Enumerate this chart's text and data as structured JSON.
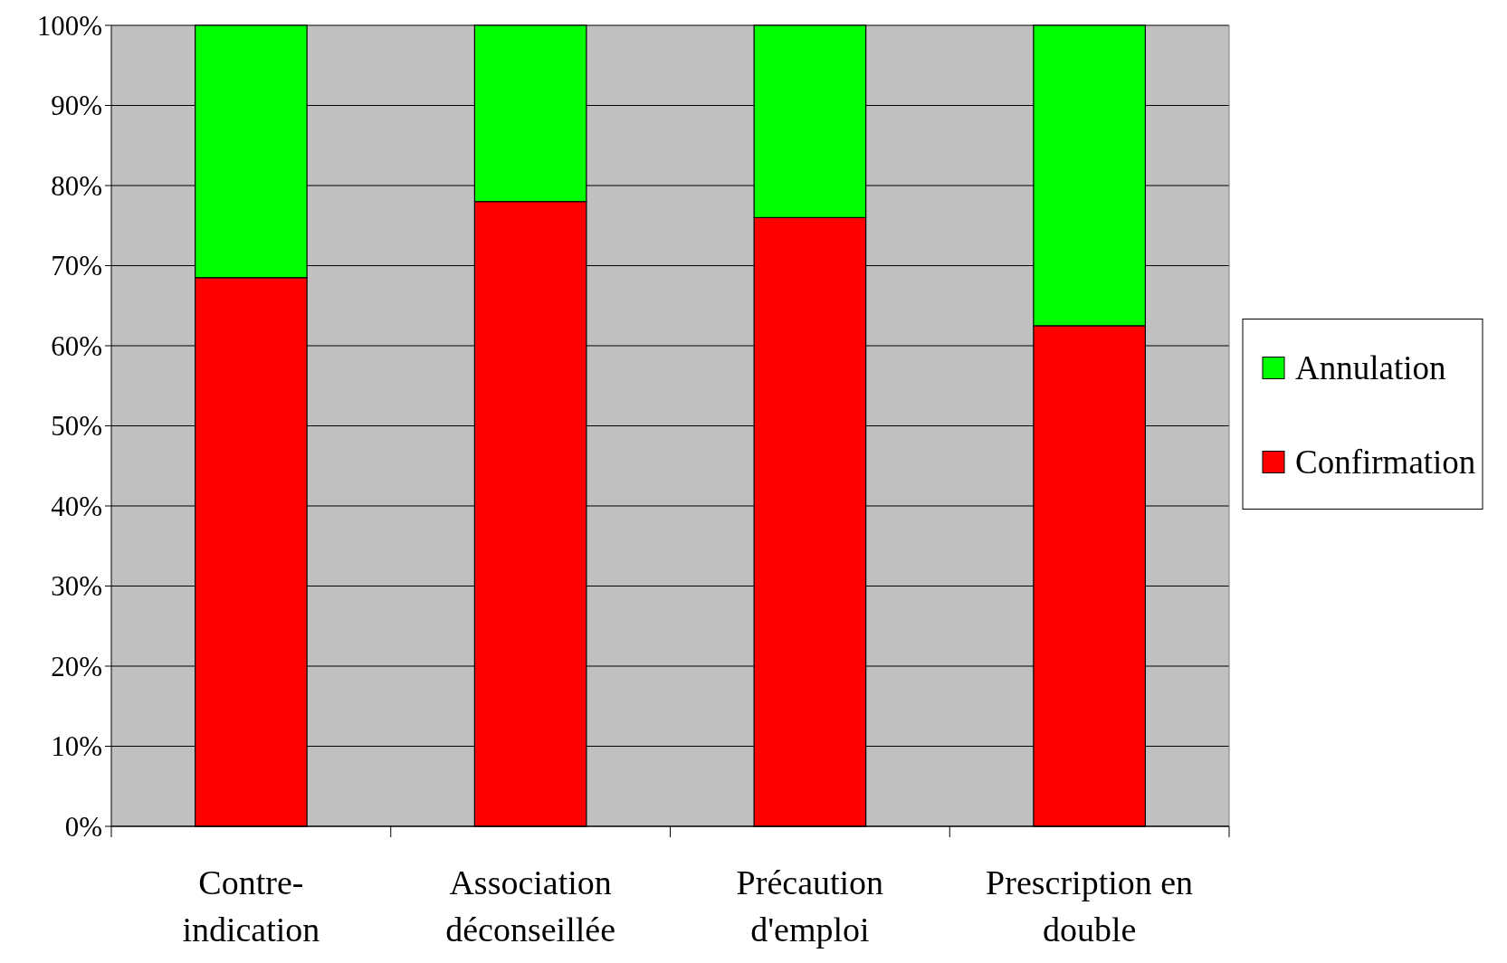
{
  "chart_data": {
    "type": "bar",
    "stacked": true,
    "categories": [
      "Contre-indication",
      "Association déconseillée",
      "Précaution d'emploi",
      "Prescription en double"
    ],
    "series": [
      {
        "name": "Confirmation",
        "color": "#ff0000",
        "values": [
          68.5,
          78,
          76,
          62.5
        ]
      },
      {
        "name": "Annulation",
        "color": "#00ff00",
        "values": [
          31.5,
          22,
          24,
          37.5
        ]
      }
    ],
    "ylim": [
      0,
      100
    ],
    "yticks": [
      {
        "value": 0,
        "label": "0%"
      },
      {
        "value": 10,
        "label": "10%"
      },
      {
        "value": 20,
        "label": "20%"
      },
      {
        "value": 30,
        "label": "30%"
      },
      {
        "value": 40,
        "label": "40%"
      },
      {
        "value": 50,
        "label": "50%"
      },
      {
        "value": 60,
        "label": "60%"
      },
      {
        "value": 70,
        "label": "70%"
      },
      {
        "value": 80,
        "label": "80%"
      },
      {
        "value": 90,
        "label": "90%"
      },
      {
        "value": 100,
        "label": "100%"
      }
    ],
    "grid": "y",
    "legend": "right"
  }
}
